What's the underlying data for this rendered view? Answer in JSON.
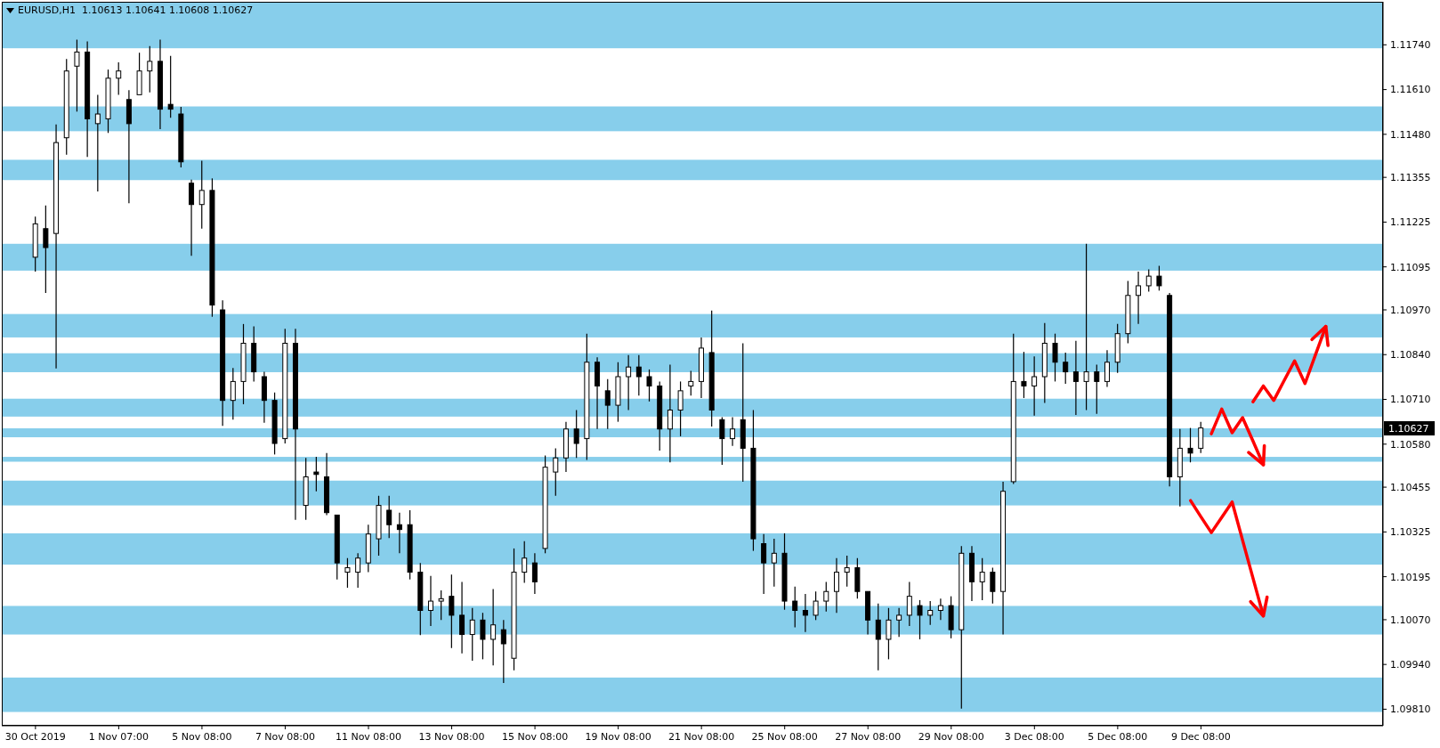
{
  "chart_data": {
    "type": "candlestick",
    "title": "EURUSD,H1  1.10613 1.10641 1.10608 1.10627",
    "color": "#000000",
    "categories": [
      "30 Oct 2019",
      null,
      null,
      null,
      null,
      null,
      null,
      null,
      "1 Nov 07:00",
      null,
      null,
      null,
      null,
      null,
      null,
      null,
      "5 Nov 08:00",
      null,
      null,
      null,
      null,
      null,
      null,
      null,
      "7 Nov 08:00",
      null,
      null,
      null,
      null,
      null,
      null,
      null,
      "11 Nov 08:00",
      null,
      null,
      null,
      null,
      null,
      null,
      null,
      "13 Nov 08:00",
      null,
      null,
      null,
      null,
      null,
      null,
      null,
      "15 Nov 08:00",
      null,
      null,
      null,
      null,
      null,
      null,
      null,
      "19 Nov 08:00",
      null,
      null,
      null,
      null,
      null,
      null,
      null,
      "21 Nov 08:00",
      null,
      null,
      null,
      null,
      null,
      null,
      null,
      "25 Nov 08:00",
      null,
      null,
      null,
      null,
      null,
      null,
      null,
      "27 Nov 08:00",
      null,
      null,
      null,
      null,
      null,
      null,
      null,
      "29 Nov 08:00",
      null,
      null,
      null,
      null,
      null,
      null,
      null,
      "3 Dec 08:00",
      null,
      null,
      null,
      null,
      null,
      null,
      null,
      "5 Dec 08:00",
      null,
      null,
      null,
      null,
      null,
      null,
      null,
      "9 Dec 08:00",
      null,
      null,
      null,
      null,
      null,
      null,
      null,
      null,
      null,
      null,
      null,
      null,
      null,
      null,
      null,
      null,
      null
    ],
    "ohlc": [
      [
        1.11123,
        1.11241,
        1.11081,
        1.1122
      ],
      [
        1.11206,
        1.11273,
        1.11019,
        1.11151
      ],
      [
        1.11192,
        1.11509,
        1.108,
        1.11456
      ],
      [
        1.1147,
        1.11699,
        1.11421,
        1.11664
      ],
      [
        1.11678,
        1.11755,
        1.11546,
        1.11719
      ],
      [
        1.11719,
        1.1175,
        1.11414,
        1.11525
      ],
      [
        1.11511,
        1.11595,
        1.11314,
        1.11539
      ],
      [
        1.11525,
        1.11668,
        1.11484,
        1.11643
      ],
      [
        1.11643,
        1.11689,
        1.11595,
        1.11664
      ],
      [
        1.11581,
        1.11608,
        1.1128,
        1.11511
      ],
      [
        1.11595,
        1.11717,
        1.11595,
        1.11664
      ],
      [
        1.11664,
        1.11736,
        1.11602,
        1.11692
      ],
      [
        1.11692,
        1.11755,
        1.11495,
        1.11553
      ],
      [
        1.11567,
        1.11708,
        1.11528,
        1.11553
      ],
      [
        1.11539,
        1.1156,
        1.11384,
        1.114
      ],
      [
        1.11338,
        1.11348,
        1.11127,
        1.11276
      ],
      [
        1.11276,
        1.11403,
        1.11206,
        1.11317
      ],
      [
        1.11317,
        1.11352,
        1.1095,
        1.10984
      ],
      [
        1.1097,
        1.10998,
        1.10633,
        1.10707
      ],
      [
        1.10707,
        1.10801,
        1.10651,
        1.10762
      ],
      [
        1.10762,
        1.10929,
        1.10696,
        1.10873
      ],
      [
        1.10873,
        1.10922,
        1.10762,
        1.1079
      ],
      [
        1.10776,
        1.1079,
        1.10642,
        1.10707
      ],
      [
        1.10707,
        1.1073,
        1.1055,
        1.10582
      ],
      [
        1.10596,
        1.10915,
        1.10582,
        1.10873
      ],
      [
        1.10873,
        1.10915,
        1.1036,
        1.10624
      ],
      [
        1.10402,
        1.1054,
        1.1036,
        1.10485
      ],
      [
        1.10499,
        1.10543,
        1.10443,
        1.10492
      ],
      [
        1.10485,
        1.10554,
        1.10374,
        1.10381
      ],
      [
        1.10374,
        1.10374,
        1.10187,
        1.10235
      ],
      [
        1.10208,
        1.10249,
        1.10163,
        1.10221
      ],
      [
        1.10208,
        1.10263,
        1.10163,
        1.10249
      ],
      [
        1.10235,
        1.10346,
        1.10208,
        1.10319
      ],
      [
        1.10305,
        1.1043,
        1.10256,
        1.10402
      ],
      [
        1.10388,
        1.1043,
        1.10307,
        1.10346
      ],
      [
        1.10346,
        1.10381,
        1.10263,
        1.10332
      ],
      [
        1.10346,
        1.10388,
        1.10187,
        1.10208
      ],
      [
        1.10208,
        1.10235,
        1.10025,
        1.10097
      ],
      [
        1.10097,
        1.10197,
        1.10052,
        1.10124
      ],
      [
        1.10124,
        1.10155,
        1.10069,
        1.10131
      ],
      [
        1.10138,
        1.10201,
        1.09988,
        1.10083
      ],
      [
        1.10083,
        1.1018,
        1.09972,
        1.10027
      ],
      [
        1.10027,
        1.10104,
        1.09951,
        1.10069
      ],
      [
        1.10069,
        1.1009,
        1.09955,
        1.10013
      ],
      [
        1.10013,
        1.10159,
        1.09937,
        1.10055
      ],
      [
        1.10041,
        1.10069,
        1.09886,
        1.1
      ],
      [
        1.09958,
        1.10277,
        1.09923,
        1.10208
      ],
      [
        1.10208,
        1.10298,
        1.10177,
        1.10249
      ],
      [
        1.10235,
        1.10263,
        1.10145,
        1.1018
      ],
      [
        1.10277,
        1.10547,
        1.10263,
        1.10513
      ],
      [
        1.10499,
        1.10568,
        1.1043,
        1.1054
      ],
      [
        1.1054,
        1.10645,
        1.10499,
        1.10624
      ],
      [
        1.10624,
        1.10679,
        1.1054,
        1.10582
      ],
      [
        1.10596,
        1.10901,
        1.10534,
        1.10818
      ],
      [
        1.10818,
        1.10832,
        1.10624,
        1.10749
      ],
      [
        1.10735,
        1.10769,
        1.10624,
        1.10693
      ],
      [
        1.10693,
        1.10818,
        1.10645,
        1.10776
      ],
      [
        1.10776,
        1.10839,
        1.10679,
        1.10804
      ],
      [
        1.10804,
        1.10839,
        1.10721,
        1.10776
      ],
      [
        1.10776,
        1.10797,
        1.10704,
        1.10749
      ],
      [
        1.10749,
        1.10762,
        1.10561,
        1.10624
      ],
      [
        1.10624,
        1.10811,
        1.10527,
        1.10679
      ],
      [
        1.10679,
        1.10762,
        1.10603,
        1.10735
      ],
      [
        1.10749,
        1.10793,
        1.10721,
        1.10762
      ],
      [
        1.10762,
        1.1089,
        1.10714,
        1.10859
      ],
      [
        1.10846,
        1.10968,
        1.10631,
        1.10679
      ],
      [
        1.10651,
        1.10658,
        1.1052,
        1.10596
      ],
      [
        1.10596,
        1.10658,
        1.10575,
        1.10624
      ],
      [
        1.10651,
        1.10873,
        1.10471,
        1.10568
      ],
      [
        1.10568,
        1.10679,
        1.1027,
        1.10305
      ],
      [
        1.10291,
        1.10319,
        1.10145,
        1.10235
      ],
      [
        1.10235,
        1.10305,
        1.10166,
        1.10263
      ],
      [
        1.10263,
        1.10321,
        1.10099,
        1.10124
      ],
      [
        1.10124,
        1.10166,
        1.10048,
        1.10097
      ],
      [
        1.10097,
        1.10145,
        1.10034,
        1.10083
      ],
      [
        1.10083,
        1.10152,
        1.10069,
        1.10124
      ],
      [
        1.10124,
        1.1018,
        1.10094,
        1.10152
      ],
      [
        1.10152,
        1.10249,
        1.1009,
        1.10208
      ],
      [
        1.10208,
        1.10256,
        1.10166,
        1.10221
      ],
      [
        1.10221,
        1.10249,
        1.10131,
        1.10152
      ],
      [
        1.10152,
        1.10152,
        1.10027,
        1.10069
      ],
      [
        1.10069,
        1.10117,
        1.09923,
        1.10013
      ],
      [
        1.10013,
        1.10104,
        1.09955,
        1.10069
      ],
      [
        1.10069,
        1.10104,
        1.1002,
        1.10083
      ],
      [
        1.10083,
        1.1018,
        1.10052,
        1.10138
      ],
      [
        1.10111,
        1.10127,
        1.10013,
        1.10083
      ],
      [
        1.10083,
        1.10124,
        1.10055,
        1.10097
      ],
      [
        1.10097,
        1.10131,
        1.10069,
        1.10111
      ],
      [
        1.10111,
        1.10138,
        1.10016,
        1.10041
      ],
      [
        1.10041,
        1.10284,
        1.09812,
        1.10263
      ],
      [
        1.10263,
        1.10284,
        1.10124,
        1.1018
      ],
      [
        1.1018,
        1.10249,
        1.10127,
        1.10208
      ],
      [
        1.10208,
        1.10221,
        1.10117,
        1.10152
      ],
      [
        1.10152,
        1.10471,
        1.10027,
        1.10443
      ],
      [
        1.10471,
        1.10901,
        1.10464,
        1.10762
      ],
      [
        1.10762,
        1.10848,
        1.10714,
        1.10749
      ],
      [
        1.10749,
        1.10835,
        1.10663,
        1.10776
      ],
      [
        1.10776,
        1.10932,
        1.107,
        1.10873
      ],
      [
        1.10873,
        1.10901,
        1.10762,
        1.10818
      ],
      [
        1.10818,
        1.10846,
        1.10755,
        1.1079
      ],
      [
        1.1079,
        1.1088,
        1.10665,
        1.10762
      ],
      [
        1.10762,
        1.11162,
        1.10679,
        1.1079
      ],
      [
        1.1079,
        1.10811,
        1.10668,
        1.10762
      ],
      [
        1.10762,
        1.10853,
        1.10746,
        1.10818
      ],
      [
        1.10818,
        1.10929,
        1.10787,
        1.10901
      ],
      [
        1.10901,
        1.11054,
        1.10873,
        1.11012
      ],
      [
        1.11012,
        1.11081,
        1.10929,
        1.1104
      ],
      [
        1.1104,
        1.11088,
        1.11023,
        1.11068
      ],
      [
        1.11068,
        1.11098,
        1.11026,
        1.1104
      ],
      [
        1.11012,
        1.11019,
        1.10457,
        1.10485
      ],
      [
        1.10485,
        1.10624,
        1.10399,
        1.10568
      ],
      [
        1.10568,
        1.10627,
        1.10527,
        1.10554
      ],
      [
        1.10568,
        1.10645,
        1.10554,
        1.10627
      ],
      null,
      null,
      null,
      null,
      null,
      null,
      null,
      null,
      null,
      null,
      null,
      null,
      null,
      null,
      null,
      null,
      null
    ],
    "series": [
      {
        "type": "line",
        "color": "#ff0000",
        "values": [
          null,
          null,
          null,
          null,
          null,
          null,
          null,
          null,
          null,
          null,
          null,
          null,
          null,
          null,
          null,
          null,
          null,
          null,
          null,
          null,
          null,
          null,
          null,
          null,
          null,
          null,
          null,
          null,
          null,
          null,
          null,
          null,
          null,
          null,
          null,
          null,
          null,
          null,
          null,
          null,
          null,
          null,
          null,
          null,
          null,
          null,
          null,
          null,
          null,
          null,
          null,
          null,
          null,
          null,
          null,
          null,
          null,
          null,
          null,
          null,
          null,
          null,
          null,
          null,
          null,
          null,
          null,
          null,
          null,
          null,
          null,
          null,
          null,
          null,
          null,
          null,
          null,
          null,
          null,
          null,
          null,
          null,
          null,
          null,
          null,
          null,
          null,
          null,
          null,
          null,
          null,
          null,
          null,
          null,
          null,
          null,
          null,
          null,
          null,
          null,
          null,
          null,
          null,
          null,
          null,
          null,
          null,
          null,
          null,
          null,
          null,
          null,
          null,
          null,
          null,
          null,
          null,
          1.10703,
          1.10749,
          1.10707,
          1.10765,
          1.10822,
          1.10756,
          1.10839,
          1.10922,
          null,
          null,
          null,
          null,
          null
        ]
      },
      {
        "type": "line",
        "color": "#ff0000",
        "values": [
          null,
          null,
          null,
          null,
          null,
          null,
          null,
          null,
          null,
          null,
          null,
          null,
          null,
          null,
          null,
          null,
          null,
          null,
          null,
          null,
          null,
          null,
          null,
          null,
          null,
          null,
          null,
          null,
          null,
          null,
          null,
          null,
          null,
          null,
          null,
          null,
          null,
          null,
          null,
          null,
          null,
          null,
          null,
          null,
          null,
          null,
          null,
          null,
          null,
          null,
          null,
          null,
          null,
          null,
          null,
          null,
          null,
          null,
          null,
          null,
          null,
          null,
          null,
          null,
          null,
          null,
          null,
          null,
          null,
          null,
          null,
          null,
          null,
          null,
          null,
          null,
          null,
          null,
          null,
          null,
          null,
          null,
          null,
          null,
          null,
          null,
          null,
          null,
          null,
          null,
          null,
          null,
          null,
          null,
          null,
          null,
          null,
          null,
          null,
          null,
          null,
          null,
          null,
          null,
          null,
          null,
          null,
          null,
          null,
          null,
          null,
          null,
          null,
          1.1061,
          1.10682,
          1.10613,
          1.10657,
          1.10589,
          1.1052,
          null,
          null,
          null,
          null,
          null,
          null,
          null,
          null,
          null,
          null,
          null
        ]
      },
      {
        "type": "line",
        "color": "#ff0000",
        "values": [
          null,
          null,
          null,
          null,
          null,
          null,
          null,
          null,
          null,
          null,
          null,
          null,
          null,
          null,
          null,
          null,
          null,
          null,
          null,
          null,
          null,
          null,
          null,
          null,
          null,
          null,
          null,
          null,
          null,
          null,
          null,
          null,
          null,
          null,
          null,
          null,
          null,
          null,
          null,
          null,
          null,
          null,
          null,
          null,
          null,
          null,
          null,
          null,
          null,
          null,
          null,
          null,
          null,
          null,
          null,
          null,
          null,
          null,
          null,
          null,
          null,
          null,
          null,
          null,
          null,
          null,
          null,
          null,
          null,
          null,
          null,
          null,
          null,
          null,
          null,
          null,
          null,
          null,
          null,
          null,
          null,
          null,
          null,
          null,
          null,
          null,
          null,
          null,
          null,
          null,
          null,
          null,
          null,
          null,
          null,
          null,
          null,
          null,
          null,
          null,
          null,
          null,
          null,
          null,
          null,
          null,
          null,
          null,
          null,
          null,
          null,
          1.10416,
          1.10369,
          1.10323,
          1.10367,
          1.10412,
          1.10301,
          1.10191,
          1.10081,
          null,
          null,
          null,
          null,
          null,
          null,
          null,
          null,
          null,
          null,
          null
        ]
      }
    ],
    "ylim": [
      1.09762,
      1.11865
    ],
    "yticks": [
      {
        "value": 1.0981,
        "label": "1.09810"
      },
      {
        "value": 1.0994,
        "label": "1.09940"
      },
      {
        "value": 1.1007,
        "label": "1.10070"
      },
      1.10195,
      1.10325,
      1.10455,
      {
        "value": 1.1058,
        "label": "1.10580"
      },
      {
        "value": 1.1071,
        "label": "1.10710"
      },
      {
        "value": 1.1084,
        "label": "1.10840"
      },
      {
        "value": 1.1097,
        "label": "1.10970"
      },
      1.11095,
      1.11225,
      1.11355,
      {
        "value": 1.1148,
        "label": "1.11480"
      },
      {
        "value": 1.1161,
        "label": "1.11610"
      },
      {
        "value": 1.1174,
        "label": "1.11740"
      }
    ],
    "bands": [
      {
        "axis": "y",
        "from": 1.1173,
        "to": 1.11865,
        "color": "#87ceeb"
      },
      {
        "axis": "y",
        "from": 1.11489,
        "to": 1.11561,
        "color": "#87ceeb"
      },
      {
        "axis": "y",
        "from": 1.11347,
        "to": 1.11406,
        "color": "#87ceeb"
      },
      {
        "axis": "y",
        "from": 1.11084,
        "to": 1.11162,
        "color": "#87ceeb"
      },
      {
        "axis": "y",
        "from": 1.1089,
        "to": 1.10958,
        "color": "#87ceeb"
      },
      {
        "axis": "y",
        "from": 1.10789,
        "to": 1.10844,
        "color": "#87ceeb"
      },
      {
        "axis": "y",
        "from": 1.1066,
        "to": 1.10712,
        "color": "#87ceeb"
      },
      {
        "axis": "y",
        "from": 1.106,
        "to": 1.10626,
        "color": "#87ceeb"
      },
      {
        "axis": "y",
        "from": 1.10529,
        "to": 1.10543,
        "color": "#87ceeb"
      },
      {
        "axis": "y",
        "from": 1.10402,
        "to": 1.10474,
        "color": "#87ceeb"
      },
      {
        "axis": "y",
        "from": 1.1023,
        "to": 1.10321,
        "color": "#87ceeb"
      },
      {
        "axis": "y",
        "from": 1.10027,
        "to": 1.1011,
        "color": "#87ceeb"
      },
      {
        "axis": "y",
        "from": 1.09802,
        "to": 1.09902,
        "color": "#87ceeb"
      }
    ],
    "annotations": [
      "1.10627"
    ]
  }
}
